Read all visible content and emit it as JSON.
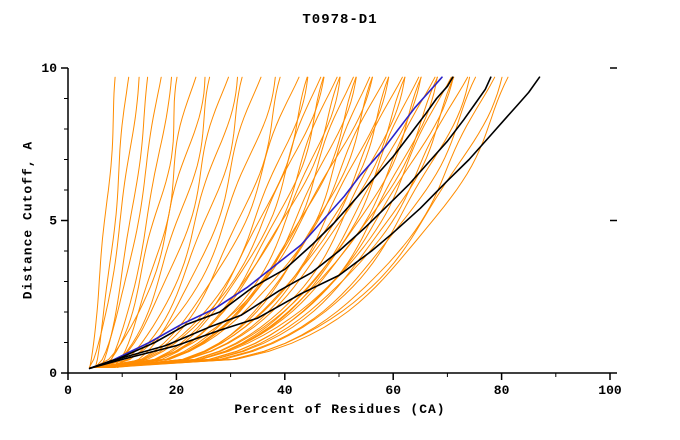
{
  "chart_data": {
    "type": "line",
    "title": "T0978-D1",
    "xlabel": "Percent of Residues (CA)",
    "ylabel": "Distance Cutoff, A",
    "xlim": [
      0,
      100
    ],
    "ylim": [
      0,
      10
    ],
    "xticks": [
      0,
      20,
      40,
      60,
      80,
      100
    ],
    "xminor_step": 10,
    "yticks": [
      0,
      5,
      10
    ],
    "yminor_step": 1,
    "grid": false,
    "legend": "none",
    "colors": {
      "model_orange": "#ff8c00",
      "highlight_black": "#000000",
      "reference_blue": "#2b23c9",
      "axis": "#000000"
    },
    "series": [
      {
        "name": "orange-model-ensemble",
        "color": "#ff8c00",
        "width": 1,
        "param_format": "[percent_at_cutoff_0, percent_at_cutoff_10, shape_exponent]",
        "curve_params": [
          [
            4,
            9,
            1.2
          ],
          [
            5,
            11,
            1.3
          ],
          [
            4,
            13,
            1.5
          ],
          [
            6,
            15,
            1.4
          ],
          [
            5,
            17,
            1.6
          ],
          [
            7,
            19,
            1.5
          ],
          [
            6,
            21,
            1.7
          ],
          [
            8,
            23,
            1.6
          ],
          [
            5,
            25,
            1.8
          ],
          [
            7,
            27,
            1.7
          ],
          [
            6,
            29,
            1.9
          ],
          [
            8,
            31,
            1.8
          ],
          [
            7,
            33,
            2.0
          ],
          [
            9,
            35,
            1.9
          ],
          [
            5,
            38,
            2.2
          ],
          [
            6,
            40,
            2.4
          ],
          [
            7,
            42,
            2.1
          ],
          [
            5,
            44,
            2.5
          ],
          [
            8,
            45,
            2.3
          ],
          [
            6,
            46,
            2.6
          ],
          [
            7,
            47,
            2.2
          ],
          [
            5,
            48,
            2.7
          ],
          [
            8,
            49,
            2.4
          ],
          [
            6,
            50,
            2.8
          ],
          [
            7,
            51,
            2.3
          ],
          [
            5,
            52,
            2.9
          ],
          [
            8,
            53,
            2.5
          ],
          [
            6,
            54,
            2.6
          ],
          [
            7,
            55,
            3.0
          ],
          [
            5,
            56,
            2.4
          ],
          [
            8,
            57,
            2.7
          ],
          [
            6,
            58,
            2.5
          ],
          [
            7,
            59,
            2.8
          ],
          [
            5,
            60,
            3.0
          ],
          [
            8,
            61,
            2.6
          ],
          [
            6,
            62,
            3.1
          ],
          [
            7,
            63,
            2.7
          ],
          [
            5,
            64,
            3.2
          ],
          [
            8,
            65,
            2.8
          ],
          [
            6,
            66,
            3.0
          ],
          [
            7,
            67,
            2.9
          ],
          [
            5,
            68,
            3.3
          ],
          [
            8,
            69,
            2.7
          ],
          [
            6,
            70,
            3.1
          ],
          [
            7,
            71,
            2.8
          ],
          [
            5,
            72,
            3.2
          ],
          [
            8,
            73,
            2.9
          ],
          [
            6,
            74,
            3.3
          ],
          [
            7,
            76,
            3.0
          ],
          [
            5,
            78,
            3.4
          ],
          [
            8,
            80,
            3.1
          ],
          [
            6,
            82,
            3.2
          ]
        ]
      },
      {
        "name": "reference-blue-curve",
        "color": "#2b23c9",
        "width": 1.6,
        "points": [
          [
            4,
            0.15
          ],
          [
            8,
            0.4
          ],
          [
            15,
            1.0
          ],
          [
            21,
            1.6
          ],
          [
            27,
            2.1
          ],
          [
            33,
            2.8
          ],
          [
            38,
            3.5
          ],
          [
            43,
            4.2
          ],
          [
            47,
            5.0
          ],
          [
            51,
            5.8
          ],
          [
            54,
            6.5
          ],
          [
            58,
            7.3
          ],
          [
            61,
            8.0
          ],
          [
            64,
            8.7
          ],
          [
            66,
            9.1
          ],
          [
            68,
            9.5
          ],
          [
            69,
            9.7
          ]
        ]
      },
      {
        "name": "black-curve-3",
        "color": "#000000",
        "width": 1.6,
        "points": [
          [
            4,
            0.15
          ],
          [
            9,
            0.45
          ],
          [
            16,
            1.0
          ],
          [
            22,
            1.6
          ],
          [
            28,
            2.0
          ],
          [
            34,
            2.8
          ],
          [
            40,
            3.4
          ],
          [
            45,
            4.2
          ],
          [
            49,
            4.9
          ],
          [
            53,
            5.7
          ],
          [
            56,
            6.3
          ],
          [
            60,
            7.1
          ],
          [
            63,
            7.8
          ],
          [
            66,
            8.5
          ],
          [
            68,
            9.0
          ],
          [
            70,
            9.4
          ],
          [
            71,
            9.7
          ]
        ]
      },
      {
        "name": "black-curve-2",
        "color": "#000000",
        "width": 1.6,
        "points": [
          [
            4,
            0.15
          ],
          [
            8,
            0.4
          ],
          [
            18,
            0.9
          ],
          [
            26,
            1.5
          ],
          [
            32,
            1.9
          ],
          [
            39,
            2.7
          ],
          [
            45,
            3.3
          ],
          [
            50,
            4.0
          ],
          [
            55,
            4.8
          ],
          [
            59,
            5.5
          ],
          [
            63,
            6.2
          ],
          [
            67,
            7.0
          ],
          [
            70,
            7.6
          ],
          [
            73,
            8.3
          ],
          [
            75,
            8.8
          ],
          [
            77,
            9.3
          ],
          [
            78,
            9.7
          ]
        ]
      },
      {
        "name": "black-curve-1",
        "color": "#000000",
        "width": 1.6,
        "points": [
          [
            4,
            0.15
          ],
          [
            9,
            0.4
          ],
          [
            20,
            0.9
          ],
          [
            28,
            1.4
          ],
          [
            35,
            1.8
          ],
          [
            43,
            2.6
          ],
          [
            50,
            3.2
          ],
          [
            56,
            4.0
          ],
          [
            60,
            4.6
          ],
          [
            65,
            5.4
          ],
          [
            70,
            6.3
          ],
          [
            74,
            7.0
          ],
          [
            78,
            7.8
          ],
          [
            81,
            8.4
          ],
          [
            83,
            8.8
          ],
          [
            85,
            9.2
          ],
          [
            87,
            9.7
          ]
        ]
      }
    ]
  }
}
